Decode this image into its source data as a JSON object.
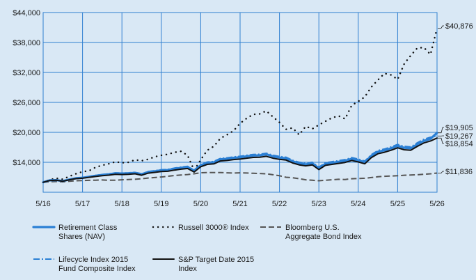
{
  "chart_data": {
    "type": "line",
    "title": "",
    "xlabel": "",
    "ylabel": "",
    "x_ticks": [
      "5/16",
      "5/17",
      "5/18",
      "5/19",
      "5/20",
      "5/21",
      "5/22",
      "5/23",
      "5/24",
      "5/25",
      "5/26"
    ],
    "y_ticks": [
      "$14,000",
      "$20,000",
      "$26,000",
      "$32,000",
      "$38,000",
      "$44,000"
    ],
    "y_tick_values": [
      14000,
      20000,
      26000,
      32000,
      38000,
      44000
    ],
    "ylim": [
      8000,
      44000
    ],
    "xlim": [
      0,
      120
    ],
    "grid": true,
    "legend_position": "bottom",
    "colors": {
      "background": "#d9e8f5",
      "grid": "#2f7fd0",
      "retirement": "#2a7fd4",
      "russell": "#111111",
      "bloomberg": "#555555",
      "lifecycle": "#2a7fd4",
      "sp": "#111111"
    },
    "x": [
      0,
      2,
      4,
      6,
      8,
      10,
      12,
      14,
      16,
      18,
      20,
      22,
      24,
      26,
      28,
      30,
      32,
      34,
      36,
      38,
      40,
      42,
      44,
      46,
      48,
      50,
      52,
      54,
      56,
      58,
      60,
      62,
      64,
      66,
      68,
      70,
      72,
      74,
      76,
      78,
      80,
      82,
      84,
      86,
      88,
      90,
      92,
      94,
      96,
      98,
      100,
      102,
      104,
      106,
      108,
      110,
      112,
      114,
      116,
      118,
      120
    ],
    "series": [
      {
        "name": "Retirement Class Shares (NAV)",
        "values": [
          10000,
          10380,
          10430,
          10250,
          10560,
          10800,
          10900,
          11100,
          11300,
          11480,
          11600,
          11800,
          11750,
          11800,
          11900,
          11600,
          12050,
          12200,
          12400,
          12450,
          12700,
          12900,
          13050,
          12300,
          13400,
          13900,
          14000,
          14600,
          14700,
          14900,
          15000,
          15200,
          15350,
          15400,
          15600,
          15200,
          14950,
          14800,
          14200,
          13800,
          13600,
          13800,
          12800,
          13700,
          13900,
          14100,
          14300,
          14700,
          14400,
          14000,
          15300,
          16100,
          16400,
          16800,
          17300,
          16900,
          16800,
          17600,
          18300,
          18700,
          19905
        ],
        "end_label": "$19,905"
      },
      {
        "name": "Russell 3000® Index",
        "values": [
          10000,
          10500,
          10800,
          10600,
          11200,
          11700,
          12100,
          12300,
          13000,
          13400,
          13700,
          14100,
          13900,
          14000,
          14500,
          14300,
          14600,
          15100,
          15400,
          15600,
          16000,
          16200,
          15400,
          12400,
          14500,
          16400,
          17200,
          18800,
          19500,
          20300,
          21800,
          22800,
          23600,
          23700,
          24300,
          23100,
          22000,
          20600,
          20900,
          19500,
          21200,
          20700,
          21500,
          22200,
          22900,
          23300,
          22700,
          25400,
          26200,
          27100,
          29100,
          30500,
          31800,
          31500,
          30600,
          33700,
          35400,
          36900,
          37000,
          35600,
          40876
        ],
        "end_label": "$40,876"
      },
      {
        "name": "Bloomberg U.S. Aggregate Bond Index",
        "values": [
          10000,
          10100,
          10150,
          10080,
          10200,
          10300,
          10350,
          10380,
          10420,
          10450,
          10400,
          10420,
          10500,
          10550,
          10600,
          10700,
          10850,
          10950,
          11050,
          11200,
          11350,
          11450,
          11550,
          11700,
          11900,
          11950,
          11950,
          11950,
          11900,
          11850,
          11900,
          11850,
          11800,
          11750,
          11700,
          11500,
          11300,
          11000,
          10900,
          10700,
          10500,
          10400,
          10300,
          10400,
          10500,
          10600,
          10550,
          10700,
          10750,
          10800,
          10950,
          11100,
          11200,
          11250,
          11300,
          11400,
          11450,
          11500,
          11600,
          11700,
          11836
        ],
        "end_label": "$11,836"
      },
      {
        "name": "Lifecycle Index 2015 Fund Composite Index",
        "values": [
          10000,
          10400,
          10460,
          10280,
          10600,
          10850,
          10960,
          11170,
          11380,
          11560,
          11690,
          11900,
          11850,
          11900,
          12000,
          11700,
          12150,
          12320,
          12520,
          12580,
          12840,
          13040,
          13200,
          12450,
          13560,
          14060,
          14180,
          14780,
          14890,
          15090,
          15200,
          15410,
          15560,
          15620,
          15820,
          15420,
          15170,
          15020,
          14410,
          14010,
          13810,
          14020,
          13020,
          13920,
          14130,
          14340,
          14540,
          14950,
          14650,
          14250,
          15550,
          16360,
          16670,
          17080,
          17590,
          17190,
          17090,
          17910,
          18620,
          19030,
          19267
        ],
        "end_label": "$19,267"
      },
      {
        "name": "S&P Target Date 2015 Index",
        "values": [
          10000,
          10350,
          10400,
          10200,
          10500,
          10720,
          10800,
          10980,
          11160,
          11320,
          11420,
          11600,
          11550,
          11600,
          11700,
          11400,
          11830,
          11970,
          12150,
          12200,
          12440,
          12620,
          12760,
          12050,
          13100,
          13580,
          13680,
          14260,
          14360,
          14550,
          14640,
          14830,
          14970,
          15020,
          15200,
          14820,
          14580,
          14440,
          13860,
          13480,
          13290,
          13490,
          12530,
          13380,
          13580,
          13780,
          13970,
          14360,
          14070,
          13690,
          14950,
          15720,
          16010,
          16410,
          16900,
          16510,
          16420,
          17200,
          17880,
          18270,
          18854
        ],
        "end_label": "$18,854"
      }
    ]
  },
  "legend": [
    {
      "key": "retirement",
      "line1": "Retirement Class",
      "line2": "Shares (NAV)"
    },
    {
      "key": "russell",
      "line1": "Russell 3000® Index",
      "line2": ""
    },
    {
      "key": "bloomberg",
      "line1": "Bloomberg U.S.",
      "line2": "Aggregate Bond Index"
    },
    {
      "key": "lifecycle",
      "line1": "Lifecycle Index 2015",
      "line2": "Fund Composite Index"
    },
    {
      "key": "sp",
      "line1": "S&P Target Date 2015",
      "line2": "Index"
    }
  ]
}
